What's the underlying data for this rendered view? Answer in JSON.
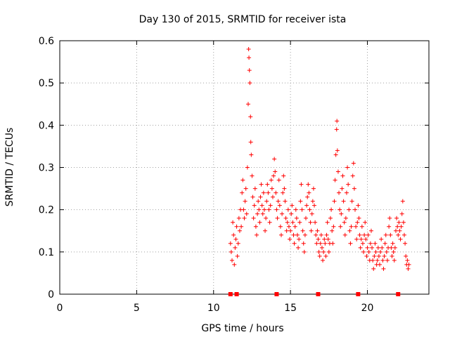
{
  "chart_data": {
    "type": "scatter",
    "title": "Day 130 of 2015, SRMTID for receiver ista",
    "xlabel": "GPS time / hours",
    "ylabel": "SRMTID / TECUs",
    "xlim": [
      0,
      24
    ],
    "ylim": [
      0,
      0.6
    ],
    "xticks": [
      0,
      5,
      10,
      15,
      20
    ],
    "yticks": [
      0,
      0.1,
      0.2,
      0.3,
      0.4,
      0.5,
      0.6
    ],
    "grid": true,
    "marker": "+",
    "color": "#ff0000",
    "series": [
      {
        "name": "SRMTID",
        "points": [
          [
            11.1,
            0.12
          ],
          [
            11.15,
            0.1
          ],
          [
            11.2,
            0.08
          ],
          [
            11.25,
            0.17
          ],
          [
            11.3,
            0.14
          ],
          [
            11.35,
            0.07
          ],
          [
            11.4,
            0.11
          ],
          [
            11.45,
            0.13
          ],
          [
            11.5,
            0.16
          ],
          [
            11.55,
            0.09
          ],
          [
            11.6,
            0.12
          ],
          [
            11.65,
            0.18
          ],
          [
            11.7,
            0.15
          ],
          [
            11.75,
            0.2
          ],
          [
            11.8,
            0.16
          ],
          [
            11.85,
            0.24
          ],
          [
            11.9,
            0.27
          ],
          [
            11.95,
            0.2
          ],
          [
            12.0,
            0.18
          ],
          [
            12.05,
            0.22
          ],
          [
            12.1,
            0.25
          ],
          [
            12.15,
            0.19
          ],
          [
            12.2,
            0.3
          ],
          [
            12.25,
            0.45
          ],
          [
            12.28,
            0.58
          ],
          [
            12.3,
            0.56
          ],
          [
            12.33,
            0.53
          ],
          [
            12.36,
            0.5
          ],
          [
            12.4,
            0.42
          ],
          [
            12.42,
            0.36
          ],
          [
            12.45,
            0.33
          ],
          [
            12.5,
            0.28
          ],
          [
            12.55,
            0.23
          ],
          [
            12.6,
            0.18
          ],
          [
            12.65,
            0.21
          ],
          [
            12.7,
            0.25
          ],
          [
            12.75,
            0.16
          ],
          [
            12.8,
            0.14
          ],
          [
            12.85,
            0.19
          ],
          [
            12.9,
            0.22
          ],
          [
            12.95,
            0.2
          ],
          [
            13.0,
            0.17
          ],
          [
            13.05,
            0.23
          ],
          [
            13.1,
            0.26
          ],
          [
            13.15,
            0.21
          ],
          [
            13.2,
            0.19
          ],
          [
            13.25,
            0.24
          ],
          [
            13.3,
            0.2
          ],
          [
            13.35,
            0.15
          ],
          [
            13.4,
            0.18
          ],
          [
            13.45,
            0.22
          ],
          [
            13.5,
            0.26
          ],
          [
            13.55,
            0.24
          ],
          [
            13.6,
            0.2
          ],
          [
            13.65,
            0.17
          ],
          [
            13.7,
            0.21
          ],
          [
            13.75,
            0.27
          ],
          [
            13.8,
            0.25
          ],
          [
            13.85,
            0.23
          ],
          [
            13.9,
            0.28
          ],
          [
            13.95,
            0.32
          ],
          [
            14.0,
            0.29
          ],
          [
            14.05,
            0.24
          ],
          [
            14.1,
            0.2
          ],
          [
            14.15,
            0.18
          ],
          [
            14.2,
            0.22
          ],
          [
            14.25,
            0.27
          ],
          [
            14.3,
            0.21
          ],
          [
            14.35,
            0.16
          ],
          [
            14.4,
            0.14
          ],
          [
            14.45,
            0.19
          ],
          [
            14.5,
            0.24
          ],
          [
            14.55,
            0.28
          ],
          [
            14.6,
            0.25
          ],
          [
            14.65,
            0.22
          ],
          [
            14.7,
            0.18
          ],
          [
            14.75,
            0.15
          ],
          [
            14.8,
            0.17
          ],
          [
            14.85,
            0.2
          ],
          [
            14.9,
            0.16
          ],
          [
            14.95,
            0.13
          ],
          [
            15.0,
            0.15
          ],
          [
            15.05,
            0.19
          ],
          [
            15.1,
            0.21
          ],
          [
            15.15,
            0.17
          ],
          [
            15.2,
            0.14
          ],
          [
            15.25,
            0.12
          ],
          [
            15.3,
            0.16
          ],
          [
            15.35,
            0.2
          ],
          [
            15.4,
            0.18
          ],
          [
            15.45,
            0.14
          ],
          [
            15.5,
            0.11
          ],
          [
            15.55,
            0.13
          ],
          [
            15.6,
            0.17
          ],
          [
            15.65,
            0.22
          ],
          [
            15.7,
            0.26
          ],
          [
            15.75,
            0.2
          ],
          [
            15.8,
            0.15
          ],
          [
            15.85,
            0.12
          ],
          [
            15.9,
            0.1
          ],
          [
            15.95,
            0.14
          ],
          [
            16.0,
            0.18
          ],
          [
            16.05,
            0.21
          ],
          [
            16.1,
            0.23
          ],
          [
            16.15,
            0.26
          ],
          [
            16.2,
            0.24
          ],
          [
            16.25,
            0.2
          ],
          [
            16.3,
            0.17
          ],
          [
            16.35,
            0.15
          ],
          [
            16.4,
            0.19
          ],
          [
            16.45,
            0.22
          ],
          [
            16.5,
            0.25
          ],
          [
            16.55,
            0.21
          ],
          [
            16.6,
            0.17
          ],
          [
            16.65,
            0.14
          ],
          [
            16.7,
            0.12
          ],
          [
            16.75,
            0.15
          ],
          [
            16.8,
            0.13
          ],
          [
            16.85,
            0.1
          ],
          [
            16.9,
            0.09
          ],
          [
            16.95,
            0.12
          ],
          [
            17.0,
            0.14
          ],
          [
            17.05,
            0.11
          ],
          [
            17.1,
            0.08
          ],
          [
            17.15,
            0.1
          ],
          [
            17.2,
            0.13
          ],
          [
            17.25,
            0.12
          ],
          [
            17.3,
            0.09
          ],
          [
            17.35,
            0.14
          ],
          [
            17.4,
            0.17
          ],
          [
            17.45,
            0.13
          ],
          [
            17.5,
            0.1
          ],
          [
            17.55,
            0.12
          ],
          [
            17.6,
            0.18
          ],
          [
            17.65,
            0.2
          ],
          [
            17.7,
            0.15
          ],
          [
            17.75,
            0.12
          ],
          [
            17.8,
            0.16
          ],
          [
            17.85,
            0.22
          ],
          [
            17.9,
            0.27
          ],
          [
            17.95,
            0.33
          ],
          [
            18.0,
            0.39
          ],
          [
            18.02,
            0.41
          ],
          [
            18.05,
            0.34
          ],
          [
            18.1,
            0.29
          ],
          [
            18.15,
            0.24
          ],
          [
            18.2,
            0.2
          ],
          [
            18.25,
            0.16
          ],
          [
            18.3,
            0.19
          ],
          [
            18.35,
            0.25
          ],
          [
            18.4,
            0.28
          ],
          [
            18.45,
            0.22
          ],
          [
            18.5,
            0.17
          ],
          [
            18.55,
            0.14
          ],
          [
            18.6,
            0.18
          ],
          [
            18.65,
            0.24
          ],
          [
            18.7,
            0.3
          ],
          [
            18.75,
            0.26
          ],
          [
            18.8,
            0.2
          ],
          [
            18.85,
            0.15
          ],
          [
            18.9,
            0.12
          ],
          [
            18.95,
            0.16
          ],
          [
            19.0,
            0.22
          ],
          [
            19.05,
            0.28
          ],
          [
            19.1,
            0.31
          ],
          [
            19.15,
            0.25
          ],
          [
            19.2,
            0.2
          ],
          [
            19.25,
            0.16
          ],
          [
            19.3,
            0.13
          ],
          [
            19.35,
            0.17
          ],
          [
            19.4,
            0.21
          ],
          [
            19.45,
            0.18
          ],
          [
            19.5,
            0.14
          ],
          [
            19.55,
            0.11
          ],
          [
            19.6,
            0.13
          ],
          [
            19.65,
            0.16
          ],
          [
            19.7,
            0.12
          ],
          [
            19.75,
            0.1
          ],
          [
            19.8,
            0.14
          ],
          [
            19.85,
            0.17
          ],
          [
            19.9,
            0.13
          ],
          [
            19.95,
            0.09
          ],
          [
            20.0,
            0.11
          ],
          [
            20.05,
            0.14
          ],
          [
            20.1,
            0.1
          ],
          [
            20.15,
            0.08
          ],
          [
            20.2,
            0.12
          ],
          [
            20.25,
            0.15
          ],
          [
            20.3,
            0.11
          ],
          [
            20.35,
            0.08
          ],
          [
            20.4,
            0.06
          ],
          [
            20.45,
            0.09
          ],
          [
            20.5,
            0.12
          ],
          [
            20.55,
            0.1
          ],
          [
            20.6,
            0.07
          ],
          [
            20.65,
            0.08
          ],
          [
            20.7,
            0.11
          ],
          [
            20.75,
            0.09
          ],
          [
            20.8,
            0.07
          ],
          [
            20.85,
            0.1
          ],
          [
            20.9,
            0.13
          ],
          [
            20.95,
            0.11
          ],
          [
            21.0,
            0.08
          ],
          [
            21.05,
            0.06
          ],
          [
            21.1,
            0.09
          ],
          [
            21.15,
            0.12
          ],
          [
            21.2,
            0.14
          ],
          [
            21.25,
            0.1
          ],
          [
            21.3,
            0.08
          ],
          [
            21.35,
            0.11
          ],
          [
            21.4,
            0.16
          ],
          [
            21.45,
            0.18
          ],
          [
            21.5,
            0.14
          ],
          [
            21.55,
            0.11
          ],
          [
            21.6,
            0.09
          ],
          [
            21.65,
            0.12
          ],
          [
            21.7,
            0.1
          ],
          [
            21.75,
            0.08
          ],
          [
            21.8,
            0.11
          ],
          [
            21.85,
            0.15
          ],
          [
            21.9,
            0.18
          ],
          [
            21.95,
            0.16
          ],
          [
            22.0,
            0.14
          ],
          [
            22.05,
            0.17
          ],
          [
            22.1,
            0.15
          ],
          [
            22.15,
            0.13
          ],
          [
            22.2,
            0.16
          ],
          [
            22.25,
            0.19
          ],
          [
            22.3,
            0.22
          ],
          [
            22.35,
            0.17
          ],
          [
            22.4,
            0.14
          ],
          [
            22.45,
            0.12
          ],
          [
            22.5,
            0.09
          ],
          [
            22.55,
            0.07
          ],
          [
            22.6,
            0.08
          ],
          [
            22.65,
            0.06
          ],
          [
            22.7,
            0.07
          ]
        ]
      }
    ],
    "markers_at_zero": [
      11.1,
      11.5,
      14.1,
      16.8,
      19.4,
      22.0
    ]
  }
}
